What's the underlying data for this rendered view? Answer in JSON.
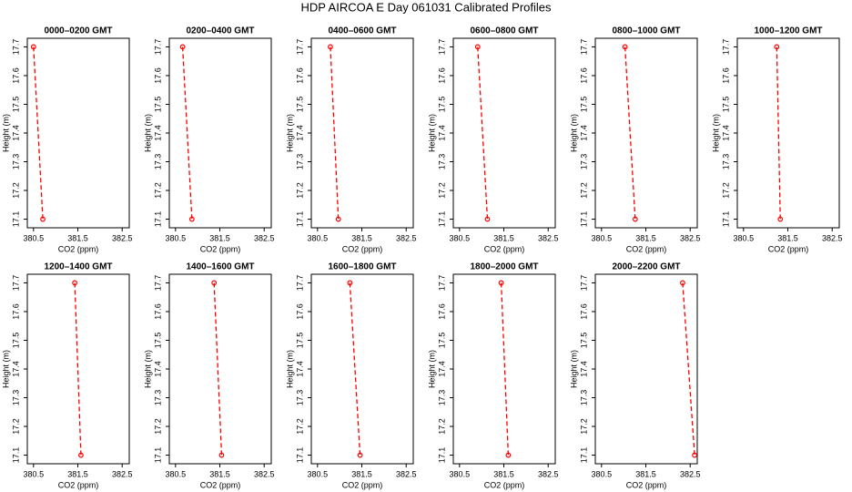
{
  "title": "HDP AIRCOA E  Day 061031  Calibrated Profiles",
  "chart_data": [
    {
      "type": "line",
      "title": "0000–0200 GMT",
      "x_label": "CO2 (ppm)",
      "y_label": "Height (m)",
      "color": "#ff0000",
      "x": [
        380.5,
        380.71
      ],
      "values": [
        17.7,
        17.1
      ],
      "xlim": [
        380.36,
        382.66
      ],
      "ylim": [
        17.07,
        17.73
      ],
      "xticks": [
        380.5,
        381.5,
        382.5
      ],
      "yticks": [
        17.1,
        17.2,
        17.3,
        17.4,
        17.5,
        17.6,
        17.7
      ]
    },
    {
      "type": "line",
      "title": "0200–0400 GMT",
      "x_label": "CO2 (ppm)",
      "y_label": "Height (m)",
      "color": "#ff0000",
      "x": [
        380.66,
        380.87
      ],
      "values": [
        17.7,
        17.1
      ],
      "xlim": [
        380.36,
        382.66
      ],
      "ylim": [
        17.07,
        17.73
      ],
      "xticks": [
        380.5,
        381.5,
        382.5
      ],
      "yticks": [
        17.1,
        17.2,
        17.3,
        17.4,
        17.5,
        17.6,
        17.7
      ]
    },
    {
      "type": "line",
      "title": "0400–0600 GMT",
      "x_label": "CO2 (ppm)",
      "y_label": "Height (m)",
      "color": "#ff0000",
      "x": [
        380.79,
        380.97
      ],
      "values": [
        17.7,
        17.1
      ],
      "xlim": [
        380.36,
        382.66
      ],
      "ylim": [
        17.07,
        17.73
      ],
      "xticks": [
        380.5,
        381.5,
        382.5
      ],
      "yticks": [
        17.1,
        17.2,
        17.3,
        17.4,
        17.5,
        17.6,
        17.7
      ]
    },
    {
      "type": "line",
      "title": "0600–0800 GMT",
      "x_label": "CO2 (ppm)",
      "y_label": "Height (m)",
      "color": "#ff0000",
      "x": [
        380.91,
        381.13
      ],
      "values": [
        17.7,
        17.1
      ],
      "xlim": [
        380.36,
        382.66
      ],
      "ylim": [
        17.07,
        17.73
      ],
      "xticks": [
        380.5,
        381.5,
        382.5
      ],
      "yticks": [
        17.1,
        17.2,
        17.3,
        17.4,
        17.5,
        17.6,
        17.7
      ]
    },
    {
      "type": "line",
      "title": "0800–1000 GMT",
      "x_label": "CO2 (ppm)",
      "y_label": "Height (m)",
      "color": "#ff0000",
      "x": [
        381.03,
        381.26
      ],
      "values": [
        17.7,
        17.1
      ],
      "xlim": [
        380.36,
        382.66
      ],
      "ylim": [
        17.07,
        17.73
      ],
      "xticks": [
        380.5,
        381.5,
        382.5
      ],
      "yticks": [
        17.1,
        17.2,
        17.3,
        17.4,
        17.5,
        17.6,
        17.7
      ]
    },
    {
      "type": "line",
      "title": "1000–1200 GMT",
      "x_label": "CO2 (ppm)",
      "y_label": "Height (m)",
      "color": "#ff0000",
      "x": [
        381.25,
        381.33
      ],
      "values": [
        17.7,
        17.1
      ],
      "xlim": [
        380.36,
        382.66
      ],
      "ylim": [
        17.07,
        17.73
      ],
      "xticks": [
        380.5,
        381.5,
        382.5
      ],
      "yticks": [
        17.1,
        17.2,
        17.3,
        17.4,
        17.5,
        17.6,
        17.7
      ]
    },
    {
      "type": "line",
      "title": "1200–1400 GMT",
      "x_label": "CO2 (ppm)",
      "y_label": "Height (m)",
      "color": "#ff0000",
      "x": [
        381.43,
        381.57
      ],
      "values": [
        17.7,
        17.1
      ],
      "xlim": [
        380.36,
        382.66
      ],
      "ylim": [
        17.07,
        17.73
      ],
      "xticks": [
        380.5,
        381.5,
        382.5
      ],
      "yticks": [
        17.1,
        17.2,
        17.3,
        17.4,
        17.5,
        17.6,
        17.7
      ]
    },
    {
      "type": "line",
      "title": "1400–1600 GMT",
      "x_label": "CO2 (ppm)",
      "y_label": "Height (m)",
      "color": "#ff0000",
      "x": [
        381.37,
        381.54
      ],
      "values": [
        17.7,
        17.1
      ],
      "xlim": [
        380.36,
        382.66
      ],
      "ylim": [
        17.07,
        17.73
      ],
      "xticks": [
        380.5,
        381.5,
        382.5
      ],
      "yticks": [
        17.1,
        17.2,
        17.3,
        17.4,
        17.5,
        17.6,
        17.7
      ]
    },
    {
      "type": "line",
      "title": "1600–1800 GMT",
      "x_label": "CO2 (ppm)",
      "y_label": "Height (m)",
      "color": "#ff0000",
      "x": [
        381.23,
        381.46
      ],
      "values": [
        17.7,
        17.1
      ],
      "xlim": [
        380.36,
        382.66
      ],
      "ylim": [
        17.07,
        17.73
      ],
      "xticks": [
        380.5,
        381.5,
        382.5
      ],
      "yticks": [
        17.1,
        17.2,
        17.3,
        17.4,
        17.5,
        17.6,
        17.7
      ]
    },
    {
      "type": "line",
      "title": "1800–2000 GMT",
      "x_label": "CO2 (ppm)",
      "y_label": "Height (m)",
      "color": "#ff0000",
      "x": [
        381.44,
        381.6
      ],
      "values": [
        17.7,
        17.1
      ],
      "xlim": [
        380.36,
        382.66
      ],
      "ylim": [
        17.07,
        17.73
      ],
      "xticks": [
        380.5,
        381.5,
        382.5
      ],
      "yticks": [
        17.1,
        17.2,
        17.3,
        17.4,
        17.5,
        17.6,
        17.7
      ]
    },
    {
      "type": "line",
      "title": "2000–2200 GMT",
      "x_label": "CO2 (ppm)",
      "y_label": "Height (m)",
      "color": "#ff0000",
      "x": [
        382.33,
        382.6
      ],
      "values": [
        17.7,
        17.1
      ],
      "xlim": [
        380.36,
        382.66
      ],
      "ylim": [
        17.07,
        17.73
      ],
      "xticks": [
        380.5,
        381.5,
        382.5
      ],
      "yticks": [
        17.1,
        17.2,
        17.3,
        17.4,
        17.5,
        17.6,
        17.7
      ]
    }
  ]
}
